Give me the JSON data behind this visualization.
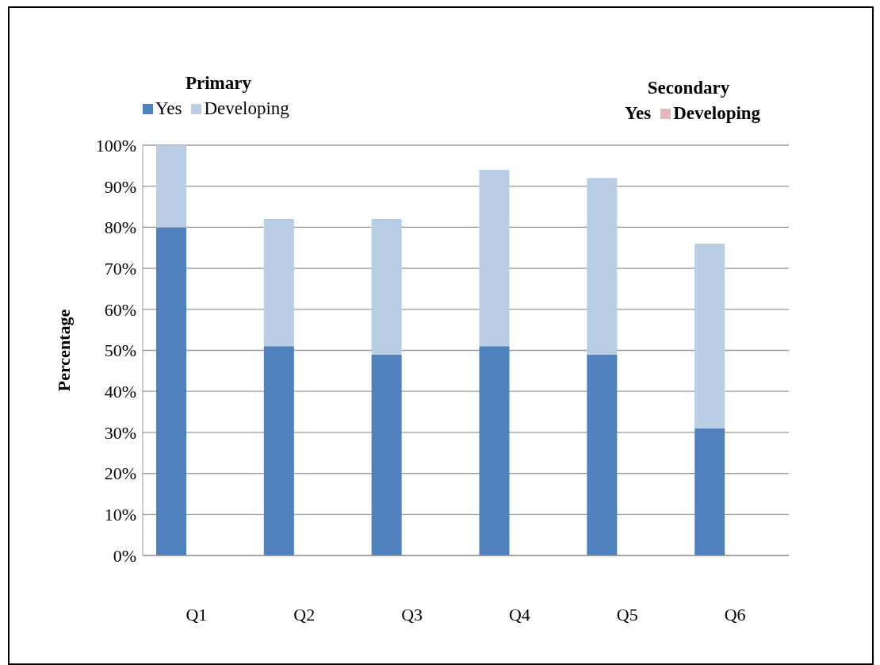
{
  "chart_data": {
    "type": "bar",
    "stacked": true,
    "ylabel": "Percentage",
    "annotations": [
      "Primary",
      "Secondary"
    ],
    "categories": [
      "Q1",
      "Q2",
      "Q3",
      "Q4",
      "Q5",
      "Q6"
    ],
    "series": [
      {
        "name": "Yes",
        "color": "#4f81bd",
        "values": [
          80,
          51,
          49,
          51,
          49,
          31
        ]
      },
      {
        "name": "Developing",
        "color": "#b9cde5",
        "values": [
          20,
          31,
          33,
          43,
          43,
          45
        ]
      },
      {
        "name": "Yes",
        "values": [
          null,
          null,
          null,
          null,
          null,
          null
        ]
      },
      {
        "name": "Developing",
        "color": "#e6b9b8",
        "values": [
          null,
          null,
          null,
          null,
          null,
          null
        ]
      }
    ],
    "ylim": [
      0,
      100
    ],
    "yticks": [
      {
        "value": 0,
        "label": "0%"
      },
      {
        "value": 10,
        "label": "10%"
      },
      {
        "value": 20,
        "label": "20%"
      },
      {
        "value": 30,
        "label": "30%"
      },
      {
        "value": 40,
        "label": "40%"
      },
      {
        "value": 50,
        "label": "50%"
      },
      {
        "value": 60,
        "label": "60%"
      },
      {
        "value": 70,
        "label": "70%"
      },
      {
        "value": 80,
        "label": "80%"
      },
      {
        "value": 90,
        "label": "90%"
      },
      {
        "value": 100,
        "label": "100%"
      }
    ],
    "grid": "y",
    "legend": "top"
  }
}
